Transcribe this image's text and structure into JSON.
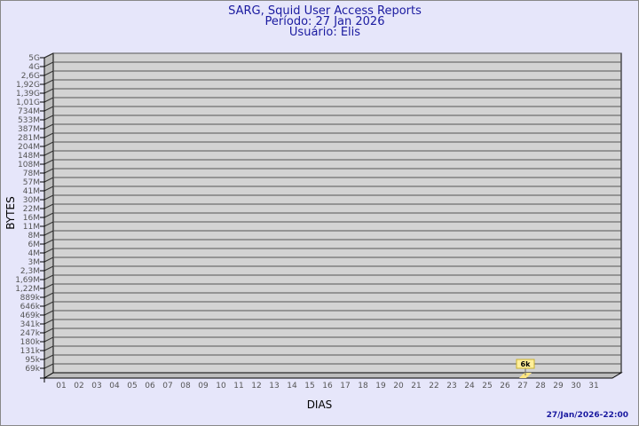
{
  "chart_data": {
    "type": "bar",
    "title": [
      "SARG, Squid User Access Reports",
      "Período: 27 Jan 2026",
      "Usuário: Elis"
    ],
    "xlabel": "DIAS",
    "ylabel": "BYTES",
    "categories": [
      "01",
      "02",
      "03",
      "04",
      "05",
      "06",
      "07",
      "08",
      "09",
      "10",
      "11",
      "12",
      "13",
      "14",
      "15",
      "16",
      "17",
      "18",
      "19",
      "20",
      "21",
      "22",
      "23",
      "24",
      "25",
      "26",
      "27",
      "28",
      "29",
      "30",
      "31"
    ],
    "yticks": [
      "5G",
      "4G",
      "2,6G",
      "1,92G",
      "1,39G",
      "1,01G",
      "734M",
      "533M",
      "387M",
      "281M",
      "204M",
      "148M",
      "108M",
      "78M",
      "57M",
      "41M",
      "30M",
      "22M",
      "16M",
      "11M",
      "8M",
      "6M",
      "4M",
      "3M",
      "2,3M",
      "1,69M",
      "1,22M",
      "889k",
      "646k",
      "469k",
      "341k",
      "247k",
      "180k",
      "131k",
      "95k",
      "69k"
    ],
    "scale": "log",
    "grid": true,
    "series": [
      {
        "values": [
          {
            "day": "27",
            "value": 6000,
            "label": "6k"
          }
        ]
      }
    ],
    "bar_color": "#ffe680",
    "label_bg": "#ffef9a",
    "plot_bg": "#d3d3d3"
  },
  "footer": {
    "timestamp": "27/Jan/2026-22:00"
  }
}
